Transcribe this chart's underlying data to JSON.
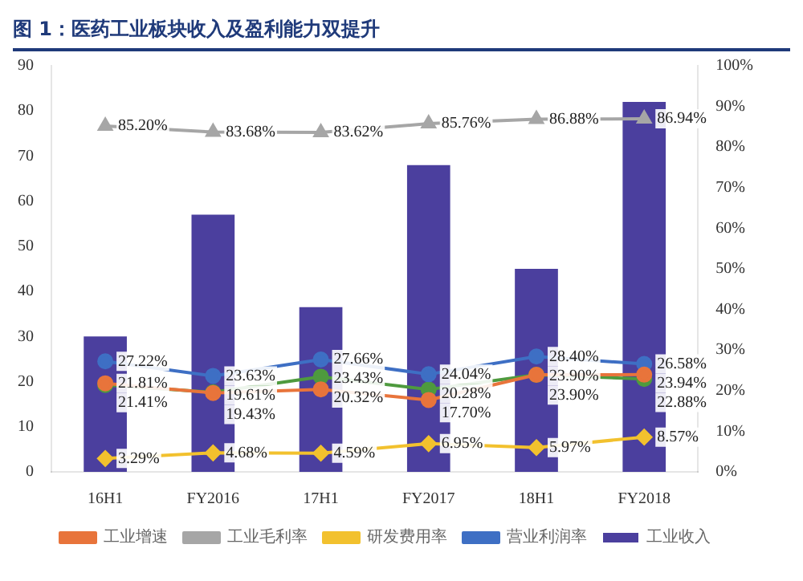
{
  "chart_data": {
    "type": "bar",
    "title": "图 1：医药工业板块收入及盈利能力双提升",
    "categories": [
      "16H1",
      "FY2016",
      "17H1",
      "FY2017",
      "18H1",
      "FY2018"
    ],
    "series": [
      {
        "name": "工业收入",
        "color": "#4b3f9e",
        "values": [
          30,
          57,
          36.5,
          68,
          45,
          82
        ]
      },
      {
        "name": "工业增速",
        "type": "line",
        "axis": "y2",
        "marker": "circle",
        "color": "#e8743b",
        "values": [
          21.81,
          19.43,
          20.32,
          17.7,
          23.9,
          23.94
        ],
        "value_labels": [
          "21.81%",
          "19.43%",
          "20.32%",
          "17.70%",
          "23.90%",
          "23.94%"
        ]
      },
      {
        "name": "工业毛利率",
        "type": "line",
        "axis": "y2",
        "marker": "triangle",
        "color": "#a6a6a6",
        "values": [
          85.2,
          83.68,
          83.62,
          85.76,
          86.88,
          86.94
        ],
        "value_labels": [
          "85.20%",
          "83.68%",
          "83.62%",
          "85.76%",
          "86.88%",
          "86.94%"
        ]
      },
      {
        "name": "研发费用率",
        "type": "line",
        "axis": "y2",
        "marker": "diamond",
        "color": "#f2c12e",
        "values": [
          3.29,
          4.68,
          4.59,
          6.95,
          5.97,
          8.57
        ],
        "value_labels": [
          "3.29%",
          "4.68%",
          "4.59%",
          "6.95%",
          "5.97%",
          "8.57%"
        ]
      },
      {
        "name": "营业利润率",
        "type": "line",
        "axis": "y2",
        "marker": "circle",
        "color": "#3e6fc4",
        "values": [
          27.22,
          23.63,
          27.66,
          24.04,
          28.4,
          26.58
        ],
        "value_labels": [
          "27.22%",
          "23.63%",
          "27.66%",
          "24.04%",
          "28.40%",
          "26.58%"
        ]
      },
      {
        "type": "line",
        "axis": "y2",
        "marker": "circle",
        "color": "#4e9a3e",
        "values": [
          21.41,
          19.61,
          23.43,
          20.28,
          23.9,
          22.88
        ],
        "value_labels": [
          "21.41%",
          "19.61%",
          "23.43%",
          "20.28%",
          "23.90%",
          "22.88%"
        ]
      }
    ],
    "ylim": [
      0,
      90
    ],
    "yticks": [
      0,
      10,
      20,
      30,
      40,
      50,
      60,
      70,
      80,
      90
    ],
    "y2lim": [
      0,
      100
    ],
    "y2ticks": [
      {
        "value": 0,
        "label": "0%"
      },
      {
        "value": 10,
        "label": "10%"
      },
      {
        "value": 20,
        "label": "20%"
      },
      {
        "value": 30,
        "label": "30%"
      },
      {
        "value": 40,
        "label": "40%"
      },
      {
        "value": 50,
        "label": "50%"
      },
      {
        "value": 60,
        "label": "60%"
      },
      {
        "value": 70,
        "label": "70%"
      },
      {
        "value": 80,
        "label": "80%"
      },
      {
        "value": 90,
        "label": "90%"
      },
      {
        "value": 100,
        "label": "100%"
      }
    ],
    "grid": false,
    "legend": "bottom"
  }
}
